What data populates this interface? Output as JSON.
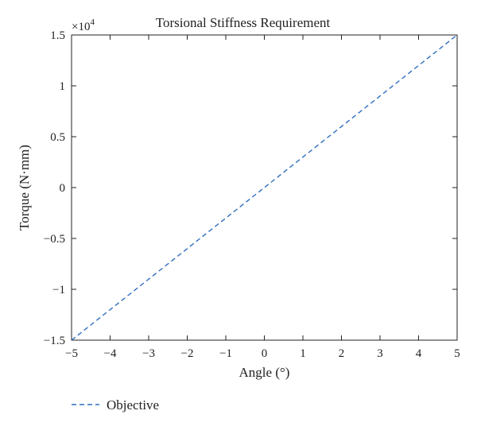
{
  "chart_data": {
    "type": "line",
    "title": "Torsional Stiffness Requirement",
    "xlabel": "Angle (°)",
    "ylabel": "Torque (N·mm)",
    "xlim": [
      -5,
      5
    ],
    "ylim": [
      -1.5,
      1.5
    ],
    "y_multiplier": "×10",
    "y_multiplier_exponent": "4",
    "x_ticks": [
      -5,
      -4,
      -3,
      -2,
      -1,
      0,
      1,
      2,
      3,
      4,
      5
    ],
    "x_tick_labels": [
      "−5",
      "−4",
      "−3",
      "−2",
      "−1",
      "0",
      "1",
      "2",
      "3",
      "4",
      "5"
    ],
    "y_ticks": [
      -1.5,
      -1,
      -0.5,
      0,
      0.5,
      1,
      1.5
    ],
    "y_tick_labels": [
      "−1.5",
      "−1",
      "−0.5",
      "0",
      "0.5",
      "1",
      "1.5"
    ],
    "grid": false,
    "legend_position": "bottom-left, below plot",
    "series": [
      {
        "name": "Objective",
        "color": "#2f6fc0",
        "style": "dashed",
        "x": [
          -5,
          5
        ],
        "y": [
          -1.5,
          1.5
        ]
      }
    ]
  }
}
